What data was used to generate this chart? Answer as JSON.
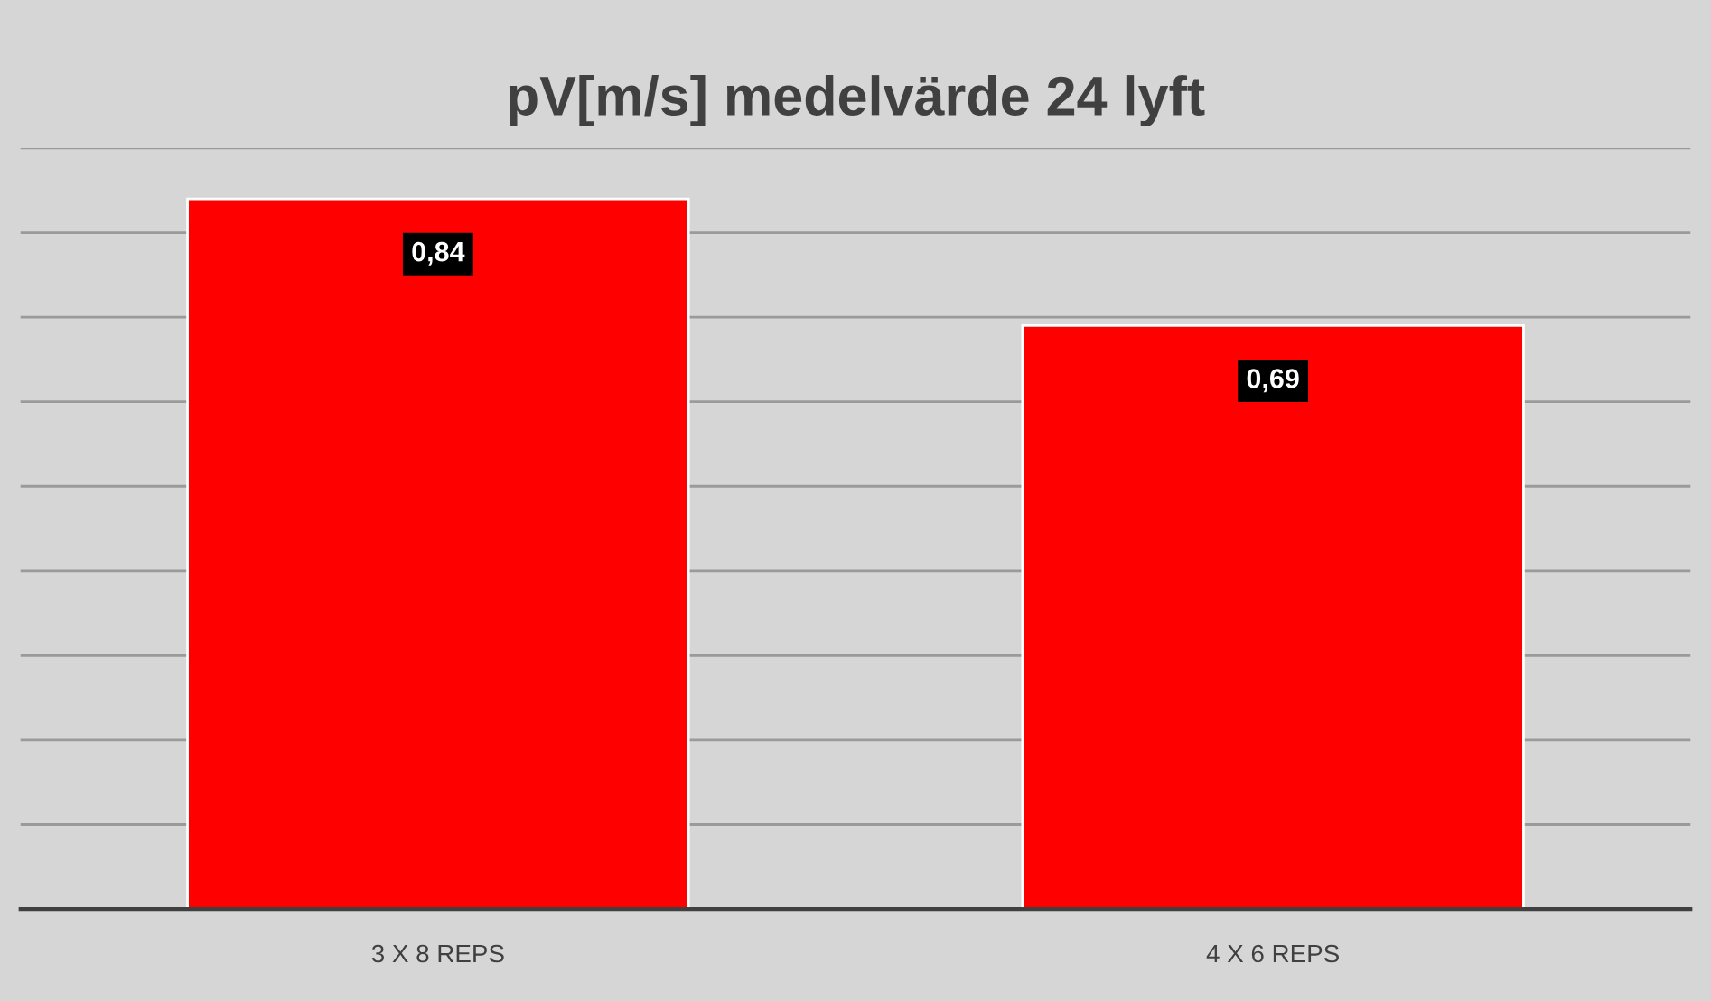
{
  "chart_data": {
    "type": "bar",
    "title": "pV[m/s] medelvärde 24 lyft",
    "categories": [
      "3 X 8 REPS",
      "4 X 6 REPS"
    ],
    "values": [
      0.84,
      0.69
    ],
    "value_labels": [
      "0,84",
      "0,69"
    ],
    "color": "#ff0000",
    "ylim": [
      0,
      0.9
    ],
    "yticks": [
      {
        "value": 0,
        "label": null
      },
      {
        "value": 0.1,
        "label": null
      },
      {
        "value": 0.2,
        "label": null
      },
      {
        "value": 0.3,
        "label": null
      },
      {
        "value": 0.4,
        "label": null
      },
      {
        "value": 0.5,
        "label": null
      },
      {
        "value": 0.6,
        "label": null
      },
      {
        "value": 0.7,
        "label": null
      },
      {
        "value": 0.8,
        "label": null
      },
      {
        "value": 0.9,
        "label": null
      }
    ],
    "tick_labels": "x",
    "grid": "y"
  }
}
